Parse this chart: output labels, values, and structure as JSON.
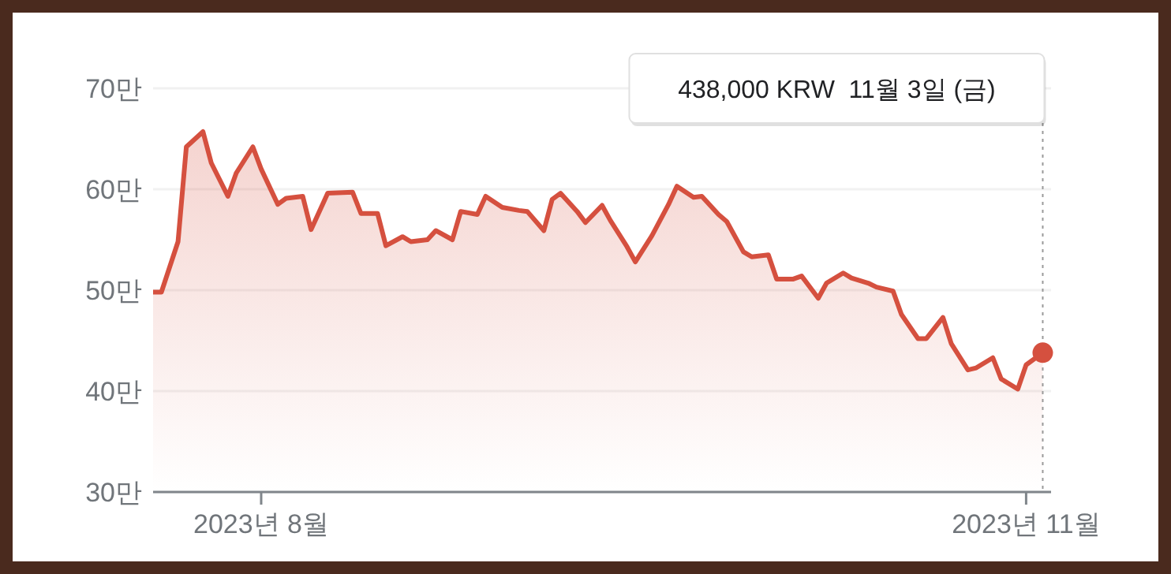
{
  "chart_data": {
    "type": "area",
    "x": [
      "2023-07-19",
      "2023-07-20",
      "2023-07-22",
      "2023-07-23",
      "2023-07-25",
      "2023-07-26",
      "2023-07-28",
      "2023-07-29",
      "2023-07-31",
      "2023-08-01",
      "2023-08-03",
      "2023-08-04",
      "2023-08-06",
      "2023-08-07",
      "2023-08-09",
      "2023-08-12",
      "2023-08-13",
      "2023-08-15",
      "2023-08-16",
      "2023-08-18",
      "2023-08-19",
      "2023-08-21",
      "2023-08-22",
      "2023-08-24",
      "2023-08-25",
      "2023-08-27",
      "2023-08-28",
      "2023-08-30",
      "2023-09-01",
      "2023-09-02",
      "2023-09-04",
      "2023-09-05",
      "2023-09-06",
      "2023-09-08",
      "2023-09-09",
      "2023-09-11",
      "2023-09-12",
      "2023-09-14",
      "2023-09-15",
      "2023-09-17",
      "2023-09-19",
      "2023-09-20",
      "2023-09-22",
      "2023-09-23",
      "2023-09-25",
      "2023-09-26",
      "2023-09-28",
      "2023-09-29",
      "2023-10-01",
      "2023-10-02",
      "2023-10-04",
      "2023-10-05",
      "2023-10-07",
      "2023-10-08",
      "2023-10-10",
      "2023-10-11",
      "2023-10-13",
      "2023-10-14",
      "2023-10-16",
      "2023-10-17",
      "2023-10-19",
      "2023-10-20",
      "2023-10-22",
      "2023-10-23",
      "2023-10-25",
      "2023-10-26",
      "2023-10-28",
      "2023-10-29",
      "2023-10-31",
      "2023-11-01",
      "2023-11-03"
    ],
    "series": [
      {
        "color": "#d5503f",
        "values": [
          49.8,
          49.8,
          54.8,
          64.2,
          65.7,
          62.6,
          59.3,
          61.6,
          64.2,
          62.0,
          58.5,
          59.1,
          59.3,
          56.0,
          59.6,
          59.7,
          57.6,
          57.6,
          54.4,
          55.3,
          54.8,
          55.0,
          55.9,
          55.0,
          57.8,
          57.5,
          59.3,
          58.2,
          57.9,
          57.8,
          55.9,
          59.0,
          59.6,
          57.8,
          56.7,
          58.4,
          56.9,
          54.3,
          52.8,
          55.4,
          58.5,
          60.3,
          59.2,
          59.3,
          57.5,
          56.8,
          53.8,
          53.3,
          53.5,
          51.1,
          51.1,
          51.4,
          49.2,
          50.7,
          51.7,
          51.2,
          50.7,
          50.3,
          49.9,
          47.6,
          45.2,
          45.2,
          47.3,
          44.7,
          42.1,
          42.3,
          43.3,
          41.2,
          40.2,
          42.6,
          43.8
        ]
      }
    ],
    "xlim": [
      "2023-07-19",
      "2023-11-04"
    ],
    "xticks": [
      {
        "value": "2023-08-01",
        "label": "2023년 8월"
      },
      {
        "value": "2023-11-01",
        "label": "2023년 11월"
      }
    ],
    "ylim": [
      30,
      70
    ],
    "yticks": [
      {
        "value": 30,
        "label": "30만"
      },
      {
        "value": 40,
        "label": "40만"
      },
      {
        "value": 50,
        "label": "50만"
      },
      {
        "value": 60,
        "label": "60만"
      },
      {
        "value": 70,
        "label": "70만"
      }
    ],
    "grid": "y",
    "ref_lines": [
      {
        "axis": "x",
        "value": "2023-11-03",
        "color": "#9a9a9a",
        "line_style": "dotted"
      }
    ],
    "annotations": [
      "438,000 KRW  11월 3일 (금)"
    ]
  }
}
